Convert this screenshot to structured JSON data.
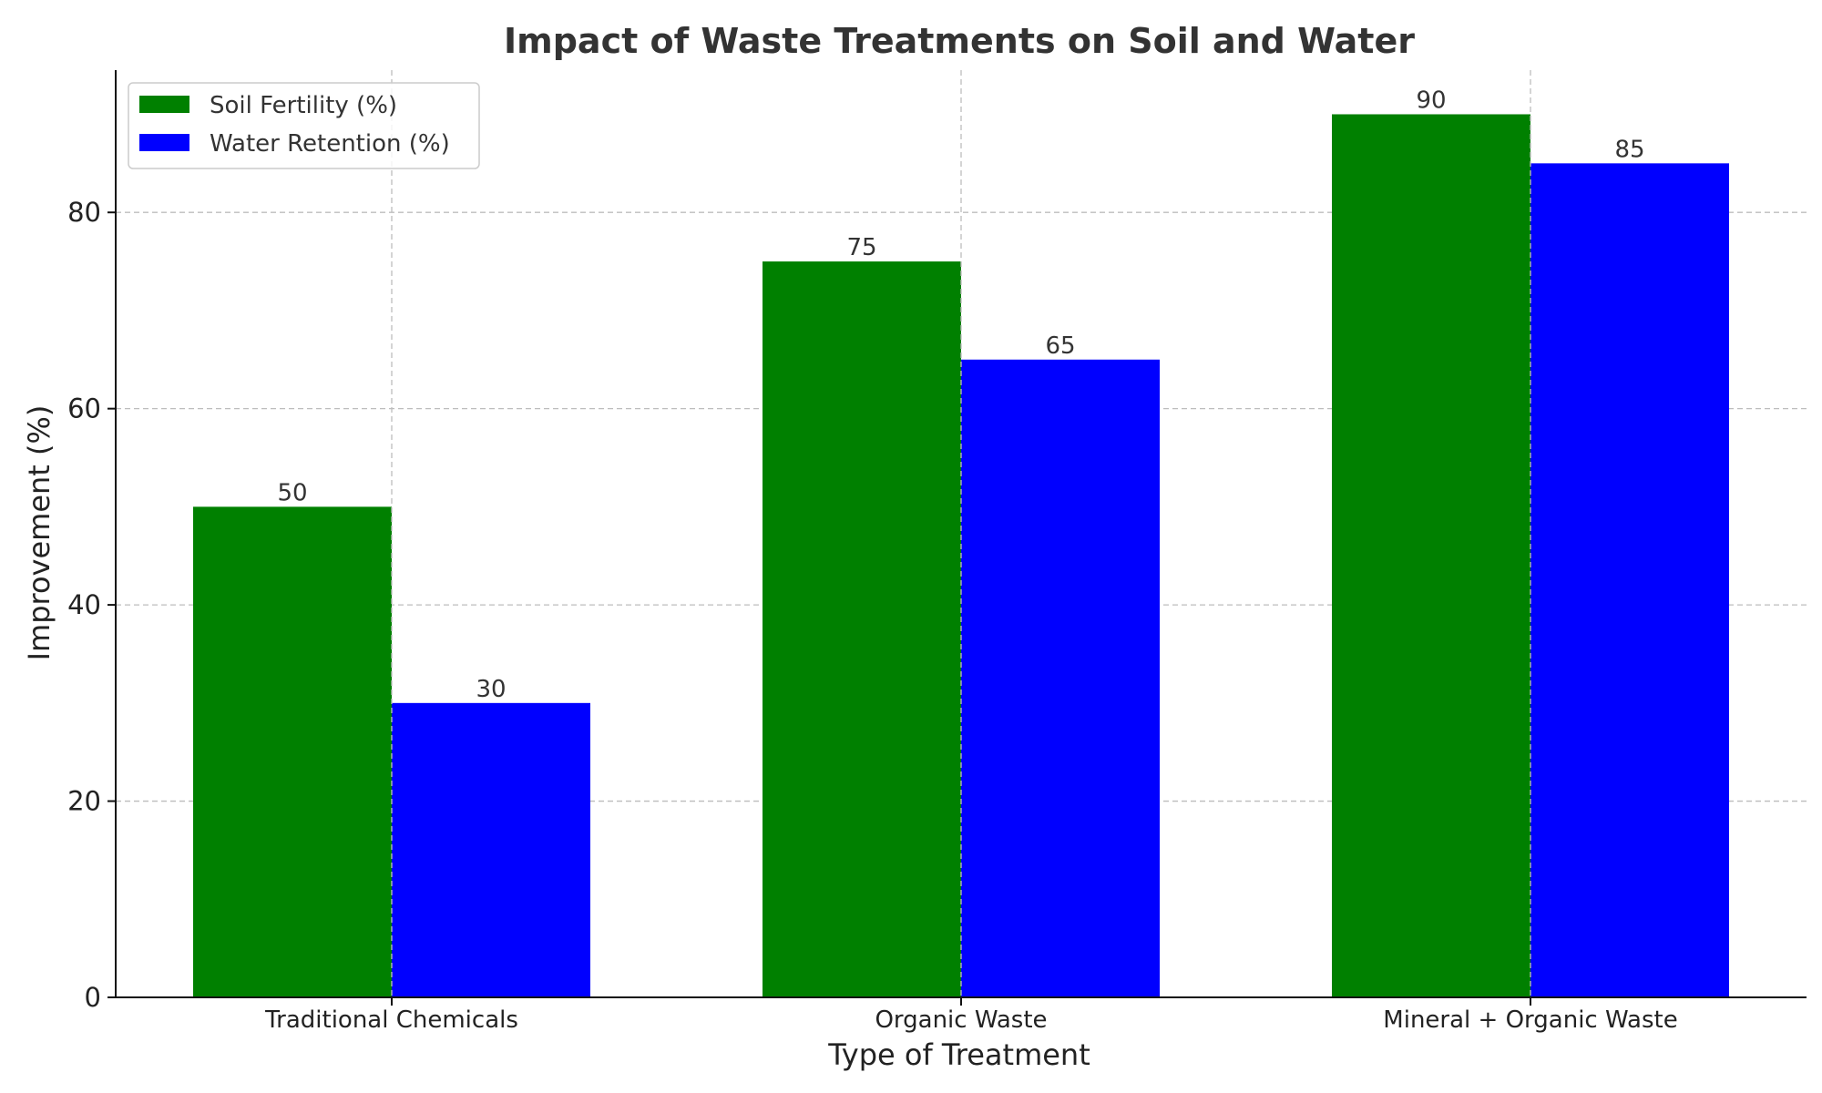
{
  "chart_data": {
    "type": "bar",
    "title": "Impact of Waste Treatments on Soil and Water",
    "xlabel": "Type of Treatment",
    "ylabel": "Improvement (%)",
    "categories": [
      "Traditional Chemicals",
      "Organic Waste",
      "Mineral + Organic Waste"
    ],
    "series": [
      {
        "name": "Soil Fertility (%)",
        "values": [
          50,
          75,
          90
        ],
        "color": "#008000"
      },
      {
        "name": "Water Retention (%)",
        "values": [
          30,
          65,
          85
        ],
        "color": "#0000ff"
      }
    ],
    "ylim": [
      0,
      94.5
    ],
    "yticks": [
      0,
      20,
      40,
      60,
      80
    ],
    "grid": true,
    "legend_position": "top-left",
    "data_labels": true
  }
}
